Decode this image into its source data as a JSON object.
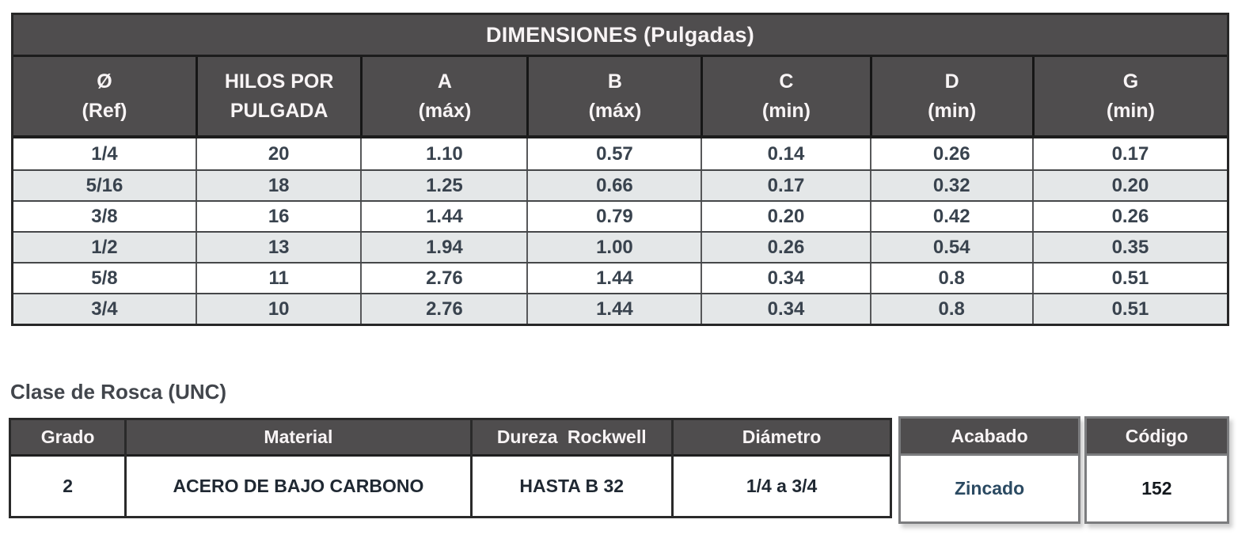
{
  "dim_table": {
    "title": "DIMENSIONES (Pulgadas)",
    "columns": [
      {
        "line1": "Ø",
        "line2": "(Ref)"
      },
      {
        "line1": "HILOS POR",
        "line2": "PULGADA"
      },
      {
        "line1": "A",
        "line2": "(máx)"
      },
      {
        "line1": "B",
        "line2": "(máx)"
      },
      {
        "line1": "C",
        "line2": "(min)"
      },
      {
        "line1": "D",
        "line2": "(min)"
      },
      {
        "line1": "G",
        "line2": "(min)"
      }
    ],
    "rows": [
      [
        "1/4",
        "20",
        "1.10",
        "0.57",
        "0.14",
        "0.26",
        "0.17"
      ],
      [
        "5/16",
        "18",
        "1.25",
        "0.66",
        "0.17",
        "0.32",
        "0.20"
      ],
      [
        "3/8",
        "16",
        "1.44",
        "0.79",
        "0.20",
        "0.42",
        "0.26"
      ],
      [
        "1/2",
        "13",
        "1.94",
        "1.00",
        "0.26",
        "0.54",
        "0.35"
      ],
      [
        "5/8",
        "11",
        "2.76",
        "1.44",
        "0.34",
        "0.8",
        "0.51"
      ],
      [
        "3/4",
        "10",
        "2.76",
        "1.44",
        "0.34",
        "0.8",
        "0.51"
      ]
    ]
  },
  "thread_class": {
    "heading": "Clase de Rosca (UNC)",
    "columns": {
      "grado": "Grado",
      "material": "Material",
      "dureza": "Dureza Rockwell",
      "diametro": "Diámetro",
      "acabado": "Acabado",
      "codigo": "Código"
    },
    "row": {
      "grado": "2",
      "material": "ACERO DE BAJO CARBONO",
      "dureza": "HASTA B 32",
      "diametro": "1/4 a 3/4",
      "acabado": "Zincado",
      "codigo": "152"
    }
  },
  "colors": {
    "header_bg": "#4f4d4e",
    "alt_row_bg": "#e4e7e8",
    "data_text": "#39434e",
    "zincado_text": "#2b4a62",
    "dark_border": "#272727",
    "box_border": "#7b7c7e"
  }
}
